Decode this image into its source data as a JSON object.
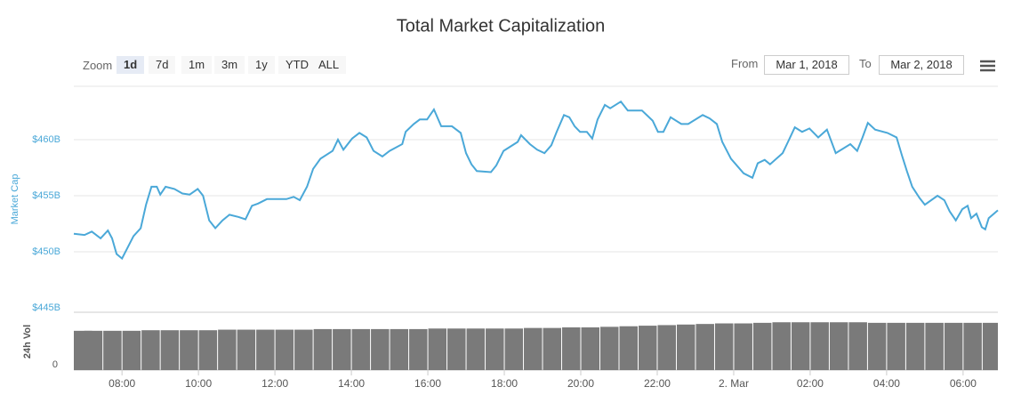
{
  "chart_data": {
    "type": "line",
    "title": "Total Market Capitalization",
    "y_label": "Market Cap",
    "color": "#4aa8d8",
    "x": [
      6.74,
      7.02,
      7.21,
      7.44,
      7.63,
      7.74,
      7.86,
      8.0,
      8.3,
      8.49,
      8.63,
      8.77,
      8.91,
      9.0,
      9.14,
      9.37,
      9.58,
      9.77,
      9.98,
      10.12,
      10.28,
      10.44,
      10.63,
      10.81,
      11.05,
      11.23,
      11.4,
      11.56,
      11.79,
      12.3,
      12.49,
      12.65,
      12.84,
      13.0,
      13.19,
      13.51,
      13.65,
      13.79,
      14.02,
      14.21,
      14.4,
      14.58,
      14.81,
      15.0,
      15.33,
      15.42,
      15.63,
      15.79,
      15.98,
      16.16,
      16.35,
      16.63,
      16.86,
      17.0,
      17.14,
      17.28,
      17.65,
      17.79,
      17.98,
      18.35,
      18.44,
      18.67,
      18.86,
      19.05,
      19.23,
      19.37,
      19.56,
      19.7,
      19.84,
      19.98,
      20.16,
      20.3,
      20.44,
      20.63,
      20.77,
      21.05,
      21.23,
      21.6,
      21.88,
      22.02,
      22.16,
      22.35,
      22.63,
      22.81,
      23.19,
      23.37,
      23.56,
      23.7,
      23.93,
      24.26,
      24.49,
      24.63,
      24.81,
      24.95,
      25.28,
      25.42,
      25.6,
      25.79,
      25.98,
      26.21,
      26.44,
      26.67,
      27.05,
      27.23,
      27.37,
      27.51,
      27.7,
      28.02,
      28.26,
      28.4,
      28.53,
      28.67,
      28.86,
      29.0,
      29.33,
      29.51,
      29.65,
      29.81,
      29.98,
      30.12,
      30.21,
      30.35,
      30.49,
      30.58,
      30.67,
      30.91
    ],
    "values": [
      451.6,
      451.5,
      451.8,
      451.2,
      451.9,
      451.2,
      449.8,
      449.4,
      451.4,
      452.1,
      454.2,
      455.8,
      455.8,
      455.1,
      455.8,
      455.6,
      455.2,
      455.1,
      455.6,
      455.0,
      452.8,
      452.1,
      452.8,
      453.3,
      453.1,
      452.9,
      454.1,
      454.3,
      454.7,
      454.7,
      454.9,
      454.6,
      455.8,
      457.4,
      458.3,
      459.0,
      460.0,
      459.1,
      460.1,
      460.6,
      460.2,
      459.0,
      458.5,
      459.0,
      459.6,
      460.7,
      461.4,
      461.8,
      461.8,
      462.7,
      461.2,
      461.2,
      460.6,
      458.8,
      457.8,
      457.2,
      457.1,
      457.7,
      459.0,
      459.8,
      460.4,
      459.6,
      459.1,
      458.8,
      459.5,
      460.7,
      462.2,
      462.0,
      461.2,
      460.7,
      460.7,
      460.1,
      461.8,
      463.1,
      462.8,
      463.4,
      462.6,
      462.6,
      461.7,
      460.7,
      460.7,
      462.0,
      461.4,
      461.4,
      462.2,
      461.9,
      461.4,
      459.8,
      458.3,
      457.0,
      456.6,
      457.9,
      458.2,
      457.8,
      458.8,
      459.8,
      461.1,
      460.7,
      461.0,
      460.2,
      460.9,
      458.8,
      459.6,
      459.0,
      460.2,
      461.5,
      460.9,
      460.6,
      460.2,
      458.6,
      457.2,
      455.8,
      454.8,
      454.2,
      455.0,
      454.6,
      453.6,
      452.8,
      453.8,
      454.1,
      453.0,
      453.4,
      452.2,
      452.0,
      453.0,
      453.7
    ],
    "ylim": [
      445,
      465
    ],
    "yticks": [
      {
        "value": 445,
        "label": "$445B"
      },
      {
        "value": 450,
        "label": "$450B"
      },
      {
        "value": 455,
        "label": "$455B"
      },
      {
        "value": 460,
        "label": "$460B"
      }
    ],
    "grid": true,
    "xlim": [
      6.74,
      30.91
    ],
    "xticks": [
      {
        "value": 8,
        "label": "08:00"
      },
      {
        "value": 10,
        "label": "10:00"
      },
      {
        "value": 12,
        "label": "12:00"
      },
      {
        "value": 14,
        "label": "14:00"
      },
      {
        "value": 16,
        "label": "16:00"
      },
      {
        "value": 18,
        "label": "18:00"
      },
      {
        "value": 20,
        "label": "20:00"
      },
      {
        "value": 22,
        "label": "22:00"
      },
      {
        "value": 24,
        "label": "2. Mar"
      },
      {
        "value": 26,
        "label": "02:00"
      },
      {
        "value": 28,
        "label": "04:00"
      },
      {
        "value": 30,
        "label": "06:00"
      }
    ],
    "volume": {
      "type": "bar",
      "label": "24h Vol",
      "color": "#7a7a7a",
      "x": [
        6.75,
        7.25,
        7.75,
        8.25,
        8.75,
        9.25,
        9.75,
        10.25,
        10.75,
        11.25,
        11.75,
        12.25,
        12.75,
        13.25,
        13.75,
        14.25,
        14.75,
        15.25,
        15.75,
        16.25,
        16.75,
        17.25,
        17.75,
        18.25,
        18.75,
        19.25,
        19.75,
        20.25,
        20.75,
        21.25,
        21.75,
        22.25,
        22.75,
        23.25,
        23.75,
        24.25,
        24.75,
        25.25,
        25.75,
        26.25,
        26.75,
        27.25,
        27.75,
        28.25,
        28.75,
        29.25,
        29.75,
        30.25,
        30.75
      ],
      "values": [
        69,
        69,
        69,
        69,
        70,
        70,
        70,
        70,
        71,
        71,
        71,
        71,
        71,
        72,
        72,
        72,
        72,
        72,
        72,
        73,
        73,
        73,
        73,
        73,
        74,
        74,
        75,
        75,
        76,
        77,
        78,
        79,
        80,
        81,
        82,
        82,
        83,
        84,
        84,
        84,
        84,
        84,
        83,
        83,
        83,
        83,
        83,
        83,
        83
      ],
      "ylim": [
        0,
        100
      ],
      "yticks": [
        0
      ]
    }
  },
  "controls": {
    "zoom_label": "Zoom",
    "zoom_buttons": [
      "1d",
      "7d",
      "1m",
      "3m",
      "1y",
      "YTD",
      "ALL"
    ],
    "active": 0,
    "from_label": "From",
    "from_value": "Mar 1, 2018",
    "to_label": "To",
    "to_value": "Mar 2, 2018"
  }
}
